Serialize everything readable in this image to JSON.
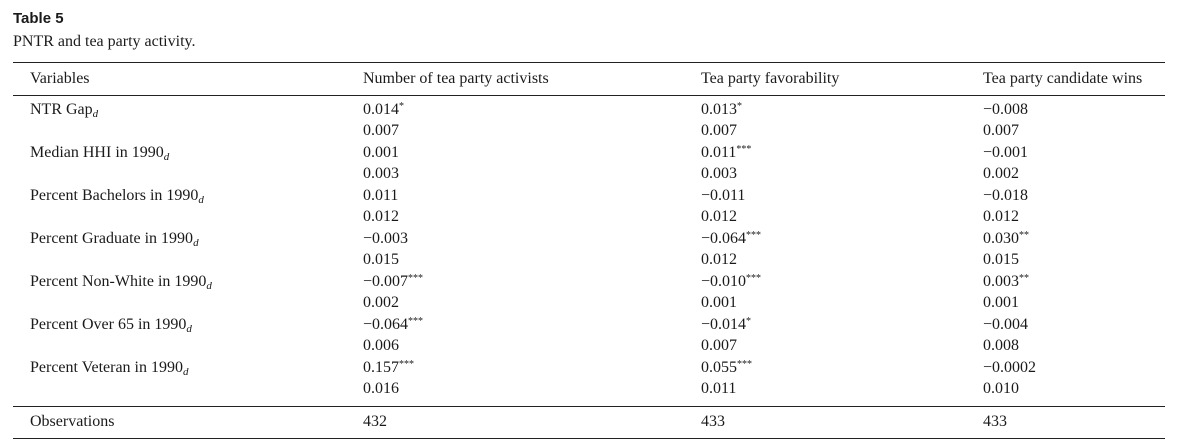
{
  "caption": {
    "title": "Table 5",
    "subtitle": "PNTR and tea party activity."
  },
  "header": {
    "variables": "Variables",
    "col1": "Number of tea party activists",
    "col2": "Tea party favorability",
    "col3": "Tea party candidate wins"
  },
  "rows": [
    {
      "label": "NTR Gap",
      "sub": "d",
      "c1": {
        "coef": "0.014",
        "stars": "*",
        "se": "0.007"
      },
      "c2": {
        "coef": "0.013",
        "stars": "*",
        "se": "0.007"
      },
      "c3": {
        "coef": "−0.008",
        "stars": "",
        "se": "0.007"
      }
    },
    {
      "label": "Median HHI in 1990",
      "sub": "d",
      "c1": {
        "coef": "0.001",
        "stars": "",
        "se": "0.003"
      },
      "c2": {
        "coef": "0.011",
        "stars": "***",
        "se": "0.003"
      },
      "c3": {
        "coef": "−0.001",
        "stars": "",
        "se": "0.002"
      }
    },
    {
      "label": "Percent Bachelors in 1990",
      "sub": "d",
      "c1": {
        "coef": "0.011",
        "stars": "",
        "se": "0.012"
      },
      "c2": {
        "coef": "−0.011",
        "stars": "",
        "se": "0.012"
      },
      "c3": {
        "coef": "−0.018",
        "stars": "",
        "se": "0.012"
      }
    },
    {
      "label": "Percent Graduate in 1990",
      "sub": "d",
      "c1": {
        "coef": "−0.003",
        "stars": "",
        "se": "0.015"
      },
      "c2": {
        "coef": "−0.064",
        "stars": "***",
        "se": "0.012"
      },
      "c3": {
        "coef": "0.030",
        "stars": "**",
        "se": "0.015"
      }
    },
    {
      "label": "Percent Non-White in 1990",
      "sub": "d",
      "c1": {
        "coef": "−0.007",
        "stars": "***",
        "se": "0.002"
      },
      "c2": {
        "coef": "−0.010",
        "stars": "***",
        "se": "0.001"
      },
      "c3": {
        "coef": "0.003",
        "stars": "**",
        "se": "0.001"
      }
    },
    {
      "label": "Percent Over 65 in 1990",
      "sub": "d",
      "c1": {
        "coef": "−0.064",
        "stars": "***",
        "se": "0.006"
      },
      "c2": {
        "coef": "−0.014",
        "stars": "*",
        "se": "0.007"
      },
      "c3": {
        "coef": "−0.004",
        "stars": "",
        "se": "0.008"
      }
    },
    {
      "label": "Percent Veteran in 1990",
      "sub": "d",
      "c1": {
        "coef": "0.157",
        "stars": "***",
        "se": "0.016"
      },
      "c2": {
        "coef": "0.055",
        "stars": "***",
        "se": "0.011"
      },
      "c3": {
        "coef": "−0.0002",
        "stars": "",
        "se": "0.010"
      }
    }
  ],
  "observations": {
    "label": "Observations",
    "c1": "432",
    "c2": "433",
    "c3": "433"
  }
}
